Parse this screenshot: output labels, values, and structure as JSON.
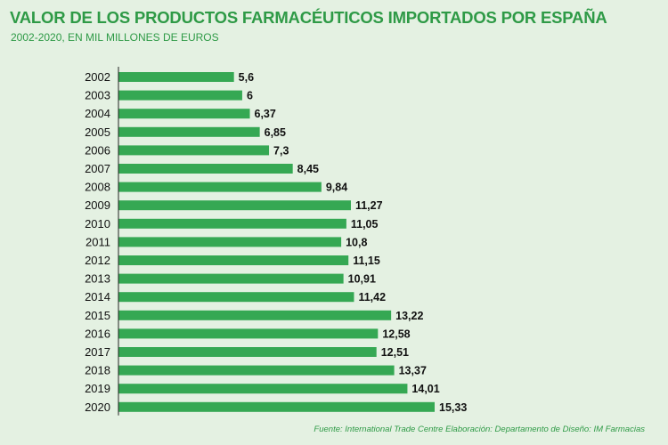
{
  "title": "VALOR DE LOS PRODUCTOS FARMACÉUTICOS IMPORTADOS POR ESPAÑA",
  "subtitle": "2002-2020, EN MIL MILLONES DE EUROS",
  "source": "Fuente: International Trade Centre  Elaboración: Departamento de Diseño: IM Farmacias",
  "colors": {
    "background": "#e4f1e2",
    "bar": "#35a853",
    "title": "#2e9a46",
    "axis": "#222222"
  },
  "chart_data": {
    "type": "bar",
    "orientation": "horizontal",
    "categories": [
      "2002",
      "2003",
      "2004",
      "2005",
      "2006",
      "2007",
      "2008",
      "2009",
      "2010",
      "2011",
      "2012",
      "2013",
      "2014",
      "2015",
      "2016",
      "2017",
      "2018",
      "2019",
      "2020"
    ],
    "values": [
      5.6,
      6,
      6.37,
      6.85,
      7.3,
      8.45,
      9.84,
      11.27,
      11.05,
      10.8,
      11.15,
      10.91,
      11.42,
      13.22,
      12.58,
      12.51,
      13.37,
      14.01,
      15.33
    ],
    "value_labels": [
      "5,6",
      "6",
      "6,37",
      "6,85",
      "7,3",
      "8,45",
      "9,84",
      "11,27",
      "11,05",
      "10,8",
      "11,15",
      "10,91",
      "11,42",
      "13,22",
      "12,58",
      "12,51",
      "13,37",
      "14,01",
      "15,33"
    ],
    "xlim": [
      0,
      15.33
    ],
    "grid": false,
    "legend": "none"
  }
}
